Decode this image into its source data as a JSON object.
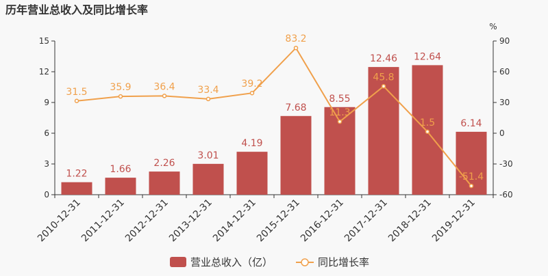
{
  "chart_data": {
    "type": "bar",
    "title": "历年营业总收入及同比增长率",
    "categories": [
      "2010-12-31",
      "2011-12-31",
      "2012-12-31",
      "2013-12-31",
      "2014-12-31",
      "2015-12-31",
      "2016-12-31",
      "2017-12-31",
      "2018-12-31",
      "2019-12-31"
    ],
    "series": [
      {
        "name": "营业总收入（亿）",
        "type": "bar",
        "axis": "left",
        "color": "#c0504d",
        "values": [
          1.22,
          1.66,
          2.26,
          3.01,
          4.19,
          7.68,
          8.55,
          12.46,
          12.64,
          6.14
        ],
        "labels": [
          "1.22",
          "1.66",
          "2.26",
          "3.01",
          "4.19",
          "7.68",
          "8.55",
          "12.46",
          "12.64",
          "6.14"
        ]
      },
      {
        "name": "同比增长率",
        "type": "line",
        "axis": "right",
        "color": "#f0a04b",
        "values": [
          31.5,
          35.9,
          36.4,
          33.4,
          39.2,
          83.2,
          11.3,
          45.8,
          1.5,
          -51.4
        ],
        "labels": [
          "31.5",
          "35.9",
          "36.4",
          "33.4",
          "39.2",
          "83.2",
          "11.3",
          "45.8",
          "1.5",
          "-51.4"
        ]
      }
    ],
    "y_left": {
      "min": 0,
      "max": 15,
      "ticks": [
        "0",
        "3",
        "6",
        "9",
        "12",
        "15"
      ]
    },
    "y_right": {
      "min": -60,
      "max": 90,
      "unit": "%",
      "ticks": [
        "-60",
        "-30",
        "0",
        "30",
        "60",
        "90"
      ]
    },
    "grid": false,
    "legend_position": "bottom-center"
  }
}
